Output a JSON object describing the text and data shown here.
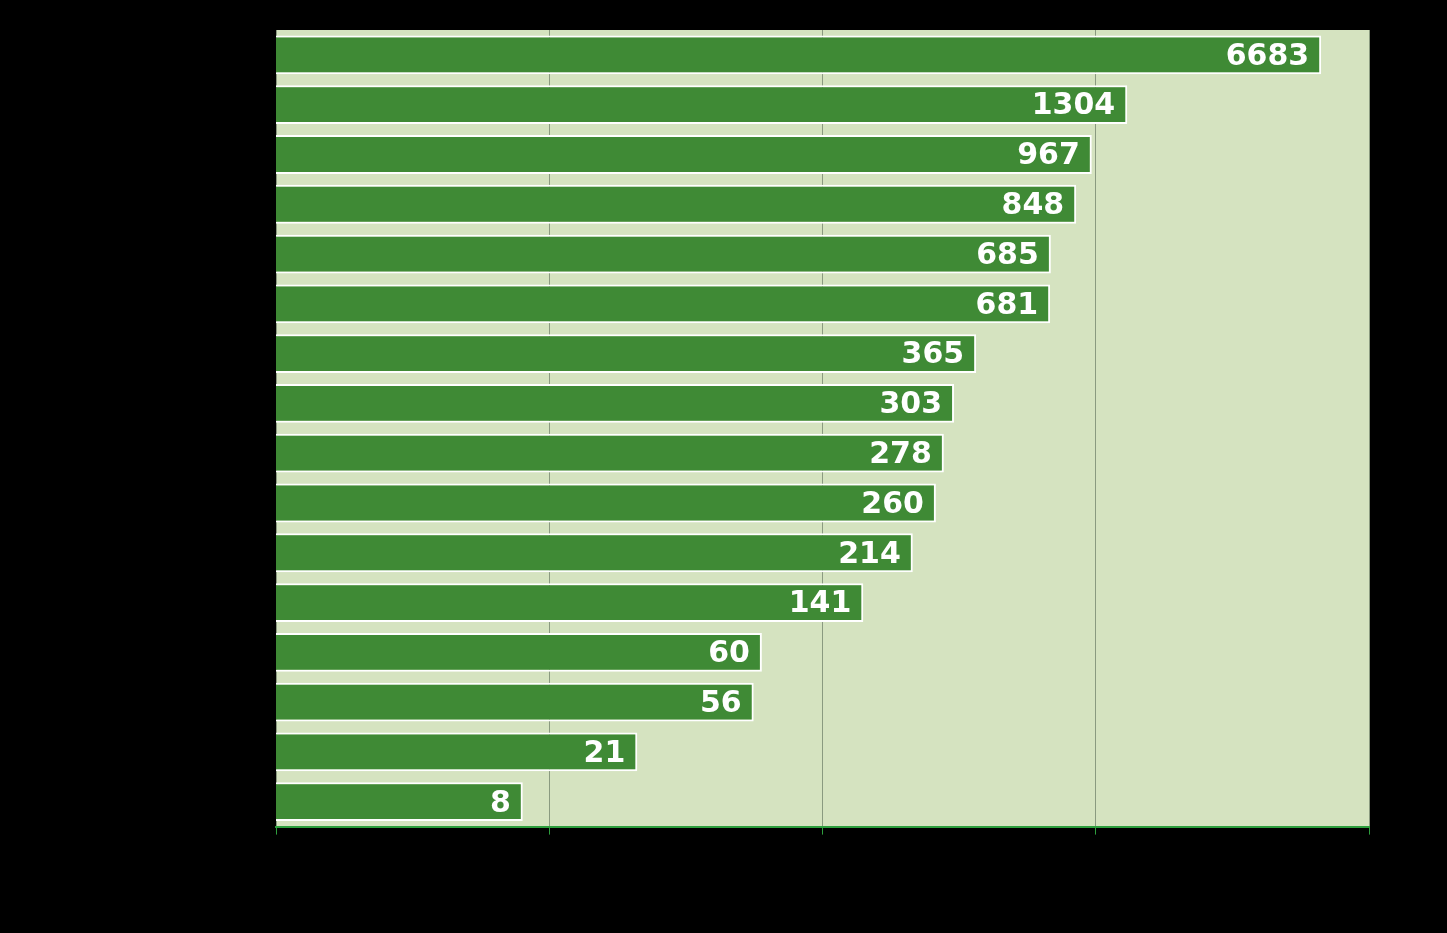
{
  "chart_data": {
    "type": "bar",
    "orientation": "horizontal",
    "categories": [
      null,
      null,
      null,
      null,
      null,
      null,
      null,
      null,
      null,
      null,
      null,
      null,
      null,
      null,
      null,
      null
    ],
    "values": [
      6683,
      1304,
      967,
      848,
      685,
      681,
      365,
      303,
      278,
      260,
      214,
      141,
      60,
      56,
      21,
      8
    ],
    "color": "#3f8a35",
    "data_labels": true,
    "log": "x",
    "xlim": [
      1,
      10000
    ],
    "xticks": [
      {
        "value": 1,
        "label": null
      },
      {
        "value": 10,
        "label": null
      },
      {
        "value": 100,
        "label": null
      },
      {
        "value": 1000,
        "label": null
      },
      {
        "value": 10000,
        "label": null
      }
    ],
    "grid": "x",
    "legend": false
  }
}
